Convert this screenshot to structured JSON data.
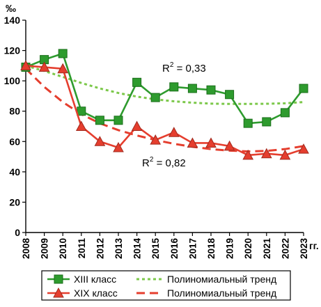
{
  "chart_data": {
    "type": "line",
    "y_unit": "‰",
    "x_unit": "гг.",
    "x": [
      2008,
      2009,
      2010,
      2011,
      2012,
      2013,
      2014,
      2015,
      2016,
      2017,
      2018,
      2019,
      2020,
      2021,
      2022,
      2023
    ],
    "ylim": [
      0,
      140
    ],
    "yticks": [
      0,
      20,
      40,
      60,
      80,
      100,
      120,
      140
    ],
    "grid": false,
    "series": [
      {
        "name": "XIII класс",
        "color": "#2e9b2e",
        "marker": "square",
        "values": [
          109,
          114,
          118,
          80,
          74,
          74,
          99,
          89,
          96,
          95,
          94,
          91,
          72,
          73,
          79,
          95
        ]
      },
      {
        "name": "XIX класс",
        "color": "#e53e2e",
        "marker": "triangle",
        "values": [
          110,
          109,
          108,
          70,
          60,
          56,
          70,
          61,
          66,
          59,
          59,
          57,
          51,
          52,
          51,
          55
        ]
      }
    ],
    "trendlines": [
      {
        "name": "Полиномиальный тренд",
        "color": "#7cc84a",
        "style": "dotted",
        "for": "XIII класс",
        "values": [
          110,
          106.5,
          102.6,
          98.6,
          95,
          92,
          89.6,
          87.8,
          86.5,
          85.6,
          85,
          84.8,
          84.8,
          84.9,
          85.2,
          86
        ]
      },
      {
        "name": "Полиномиальный тренд",
        "color": "#e53e2e",
        "style": "dashed",
        "for": "XIX класс",
        "values": [
          108,
          96,
          86,
          78,
          72,
          67.5,
          64,
          61,
          58.5,
          56.5,
          55,
          54,
          53.5,
          53.8,
          55,
          57
        ]
      }
    ],
    "annotations": [
      {
        "label": "R",
        "sup": "2",
        "rest": " = 0,33"
      },
      {
        "label": "R",
        "sup": "2",
        "rest": " = 0,82"
      }
    ],
    "legend_position": "bottom"
  }
}
